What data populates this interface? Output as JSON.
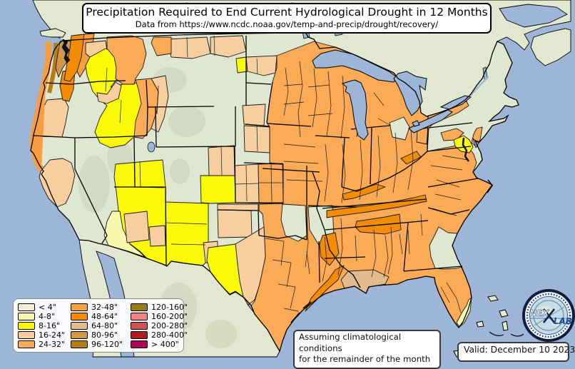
{
  "title": {
    "heading": "Precipitation Required to End Current Hydrological Drought in 12 Months",
    "subheading": "Data from https://www.ncdc.noaa.gov/temp-and-precip/drought/recovery/"
  },
  "legend": {
    "items": [
      {
        "key": "lt4",
        "label": "< 4\"",
        "color": "#f2eed9"
      },
      {
        "key": "r4_8",
        "label": "4-8\"",
        "color": "#f7f7ad"
      },
      {
        "key": "r8_16",
        "label": "8-16\"",
        "color": "#f9f908"
      },
      {
        "key": "r16_24",
        "label": "16-24\"",
        "color": "#f7cf9f"
      },
      {
        "key": "r24_32",
        "label": "24-32\"",
        "color": "#fbaa55"
      },
      {
        "key": "r32_48",
        "label": "32-48\"",
        "color": "#f79e42"
      },
      {
        "key": "r48_64",
        "label": "48-64\"",
        "color": "#f18c04"
      },
      {
        "key": "r64_80",
        "label": "64-80\"",
        "color": "#e2bb8d"
      },
      {
        "key": "r80_96",
        "label": "80-96\"",
        "color": "#d2964a"
      },
      {
        "key": "r96_120",
        "label": "96-120\"",
        "color": "#b87d12"
      },
      {
        "key": "r120_160",
        "label": "120-160\"",
        "color": "#9a7a12"
      },
      {
        "key": "r160_200",
        "label": "160-200\"",
        "color": "#f08484"
      },
      {
        "key": "r200_280",
        "label": "200-280\"",
        "color": "#d05454"
      },
      {
        "key": "r280_400",
        "label": "280-400\"",
        "color": "#b01c24"
      },
      {
        "key": "gt400",
        "label": "> 400\"",
        "color": "#ae0458"
      }
    ]
  },
  "annotations": {
    "assumption_line1": "Assuming climatological conditions",
    "assumption_line2": "for the remainder of the month",
    "valid": "Valid: December 10 2023"
  },
  "logo": {
    "text_left": "NEX",
    "text_right": "LAB"
  },
  "map": {
    "colors": {
      "ocean": "#9db6d8",
      "land_us": "#dfe7d0",
      "land_foreign": "#e2e7cf",
      "terrain_shade": "#c6cbb2",
      "outline": "#000000",
      "inland_water_dark": "#0b1526"
    }
  }
}
